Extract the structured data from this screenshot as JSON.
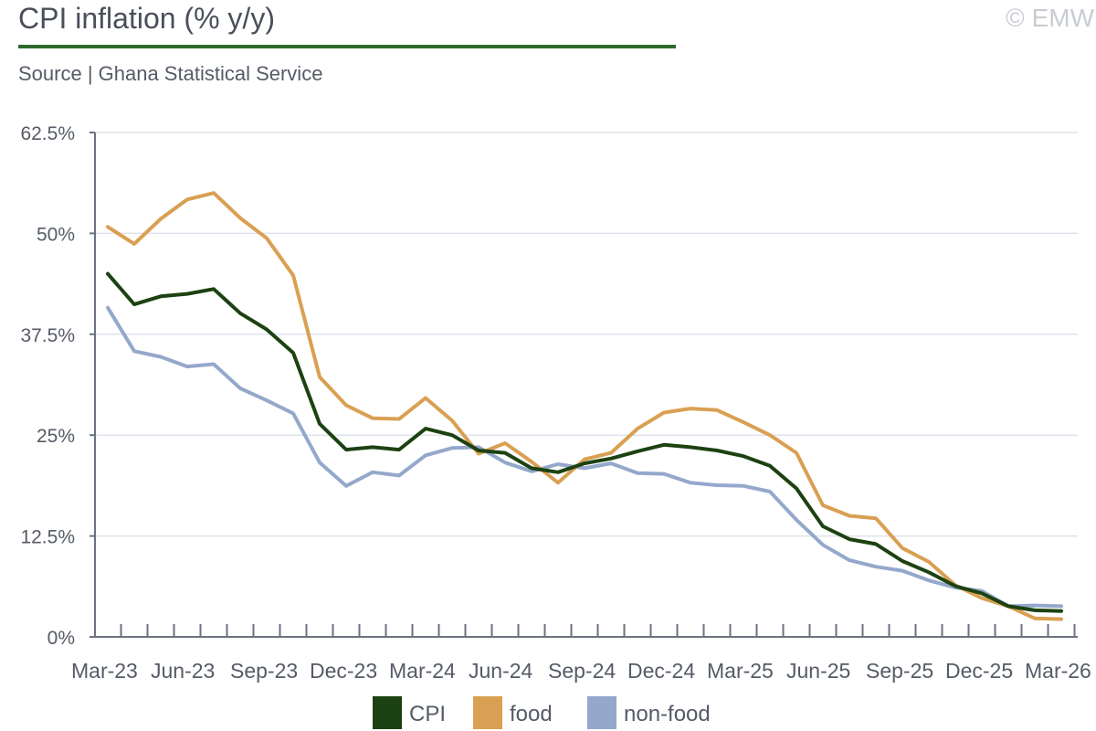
{
  "header": {
    "title": "CPI inflation (% y/y)",
    "source": "Source | Ghana Statistical Service",
    "copyright": "© EMW"
  },
  "colors": {
    "cpi": "#1c4211",
    "food": "#d9a053",
    "nonfood": "#94a8cb",
    "title_rule": "#2f6a2f",
    "grid": "#dde3ec",
    "axis": "#6b7280"
  },
  "chart_data": {
    "type": "line",
    "title": "CPI inflation (% y/y)",
    "xlabel": "",
    "ylabel": "",
    "ylim": [
      0,
      62.5
    ],
    "yticks": [
      0,
      12.5,
      25,
      37.5,
      50,
      62.5
    ],
    "ytick_labels": [
      "0%",
      "12.5%",
      "25%",
      "37.5%",
      "50%",
      "62.5%"
    ],
    "grid": true,
    "legend_position": "bottom",
    "x": [
      "Mar-23",
      "Apr-23",
      "May-23",
      "Jun-23",
      "Jul-23",
      "Aug-23",
      "Sep-23",
      "Oct-23",
      "Nov-23",
      "Dec-23",
      "Jan-24",
      "Feb-24",
      "Mar-24",
      "Apr-24",
      "May-24",
      "Jun-24",
      "Jul-24",
      "Aug-24",
      "Sep-24",
      "Oct-24",
      "Nov-24",
      "Dec-24",
      "Jan-25",
      "Feb-25",
      "Mar-25",
      "Apr-25",
      "May-25",
      "Jun-25",
      "Jul-25",
      "Aug-25",
      "Sep-25",
      "Oct-25",
      "Nov-25",
      "Dec-25",
      "Jan-26",
      "Feb-26",
      "Mar-26"
    ],
    "xtick_labels": [
      "Mar-23",
      "Jun-23",
      "Sep-23",
      "Dec-23",
      "Mar-24",
      "Jun-24",
      "Sep-24",
      "Dec-24",
      "Mar-25",
      "Jun-25",
      "Sep-25",
      "Dec-25",
      "Mar-26"
    ],
    "series": [
      {
        "name": "CPI",
        "key": "cpi",
        "values": [
          45.0,
          41.2,
          42.2,
          42.5,
          43.1,
          40.1,
          38.1,
          35.2,
          26.4,
          23.2,
          23.5,
          23.2,
          25.8,
          25.0,
          23.1,
          22.8,
          20.9,
          20.4,
          21.5,
          22.1,
          23.0,
          23.8,
          23.5,
          23.1,
          22.4,
          21.2,
          18.4,
          13.7,
          12.1,
          11.5,
          9.4,
          8.0,
          6.3,
          5.4,
          3.8,
          3.3,
          3.2
        ]
      },
      {
        "name": "food",
        "key": "food",
        "values": [
          50.8,
          48.7,
          51.8,
          54.2,
          55.0,
          51.9,
          49.4,
          44.8,
          32.2,
          28.7,
          27.1,
          27.0,
          29.6,
          26.8,
          22.7,
          24.0,
          21.7,
          19.1,
          22.0,
          22.8,
          25.8,
          27.8,
          28.3,
          28.1,
          26.6,
          25.0,
          22.8,
          16.3,
          15.0,
          14.7,
          11.0,
          9.3,
          6.4,
          4.8,
          3.8,
          2.3,
          2.2
        ]
      },
      {
        "name": "non-food",
        "key": "nonfood",
        "values": [
          40.8,
          35.4,
          34.7,
          33.5,
          33.8,
          30.8,
          29.3,
          27.7,
          21.6,
          18.7,
          20.4,
          20.0,
          22.5,
          23.4,
          23.5,
          21.6,
          20.5,
          21.4,
          20.9,
          21.5,
          20.3,
          20.2,
          19.1,
          18.8,
          18.7,
          18.0,
          14.5,
          11.4,
          9.5,
          8.7,
          8.2,
          7.0,
          6.1,
          5.7,
          3.8,
          3.9,
          3.8
        ]
      }
    ]
  }
}
